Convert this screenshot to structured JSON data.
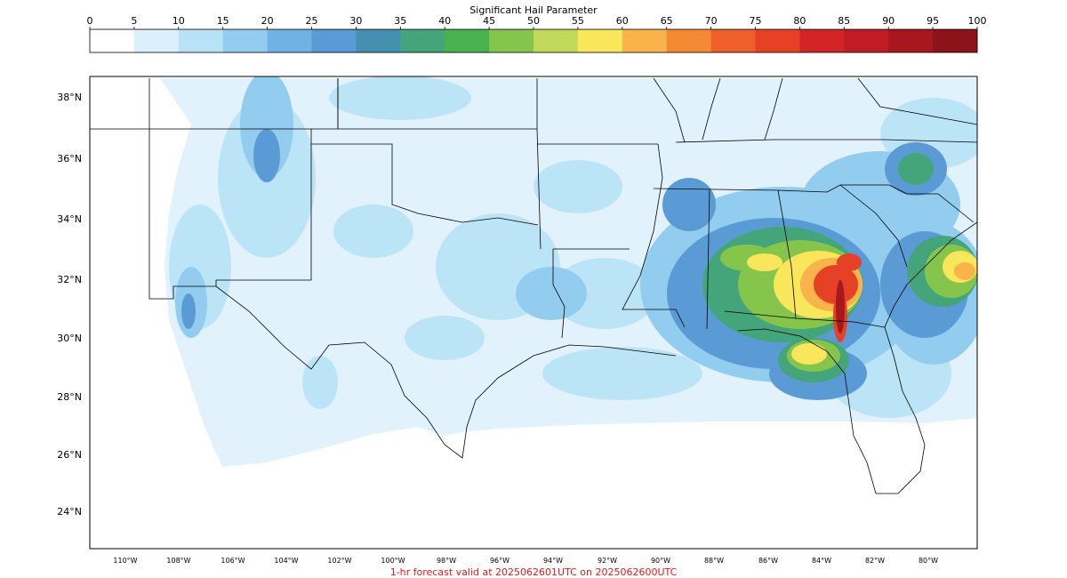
{
  "colorbar": {
    "title": "Significant Hail Parameter",
    "ticks": [
      "0",
      "5",
      "10",
      "15",
      "20",
      "25",
      "30",
      "35",
      "40",
      "45",
      "50",
      "55",
      "60",
      "65",
      "70",
      "75",
      "80",
      "85",
      "90",
      "95",
      "100"
    ],
    "colors": [
      "#ffffff",
      "#dcf0fb",
      "#b8e2f6",
      "#92cdef",
      "#6fb3e2",
      "#5b9bd5",
      "#4590b0",
      "#44a57b",
      "#48b34e",
      "#86c54c",
      "#c2d85a",
      "#f9e65b",
      "#f8b44a",
      "#f48a33",
      "#ee5f29",
      "#e44127",
      "#d42526",
      "#c01c23",
      "#a6171e",
      "#8d131a"
    ]
  },
  "map": {
    "lat_labels": [
      "38°N",
      "36°N",
      "34°N",
      "32°N",
      "30°N",
      "28°N",
      "26°N",
      "24°N"
    ],
    "lon_labels": [
      "110°W",
      "108°W",
      "106°W",
      "104°W",
      "102°W",
      "100°W",
      "98°W",
      "96°W",
      "94°W",
      "92°W",
      "90°W",
      "88°W",
      "86°W",
      "84°W",
      "82°W",
      "80°W"
    ],
    "border_color": "#000000"
  },
  "footer": {
    "forecast_text": "1-hr forecast valid at 2025062601UTC on 2025062600UTC",
    "forecast_color": "#e8161b"
  }
}
